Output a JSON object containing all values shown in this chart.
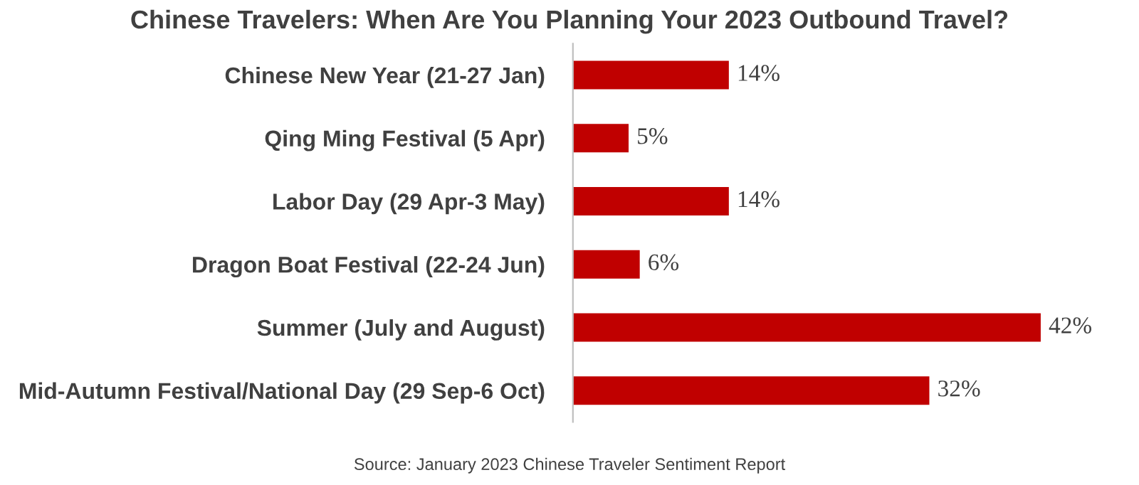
{
  "chart_data": {
    "type": "bar",
    "orientation": "horizontal",
    "title": "Chinese Travelers: When Are You Planning Your 2023 Outbound Travel?",
    "categories": [
      "Chinese New Year (21-27 Jan)",
      "Qing Ming Festival (5 Apr)",
      "Labor Day (29 Apr-3 May)",
      "Dragon Boat Festival (22-24 Jun)",
      "Summer (July and August)",
      "Mid-Autumn Festival/National Day (29 Sep-6 Oct)"
    ],
    "values": [
      14,
      5,
      14,
      6,
      42,
      32
    ],
    "value_labels": [
      "14%",
      "5%",
      "14%",
      "6%",
      "42%",
      "32%"
    ],
    "color": "#c00000",
    "grid": false,
    "annotations": [
      "Source: January 2023 Chinese Traveler Sentiment Report"
    ]
  }
}
